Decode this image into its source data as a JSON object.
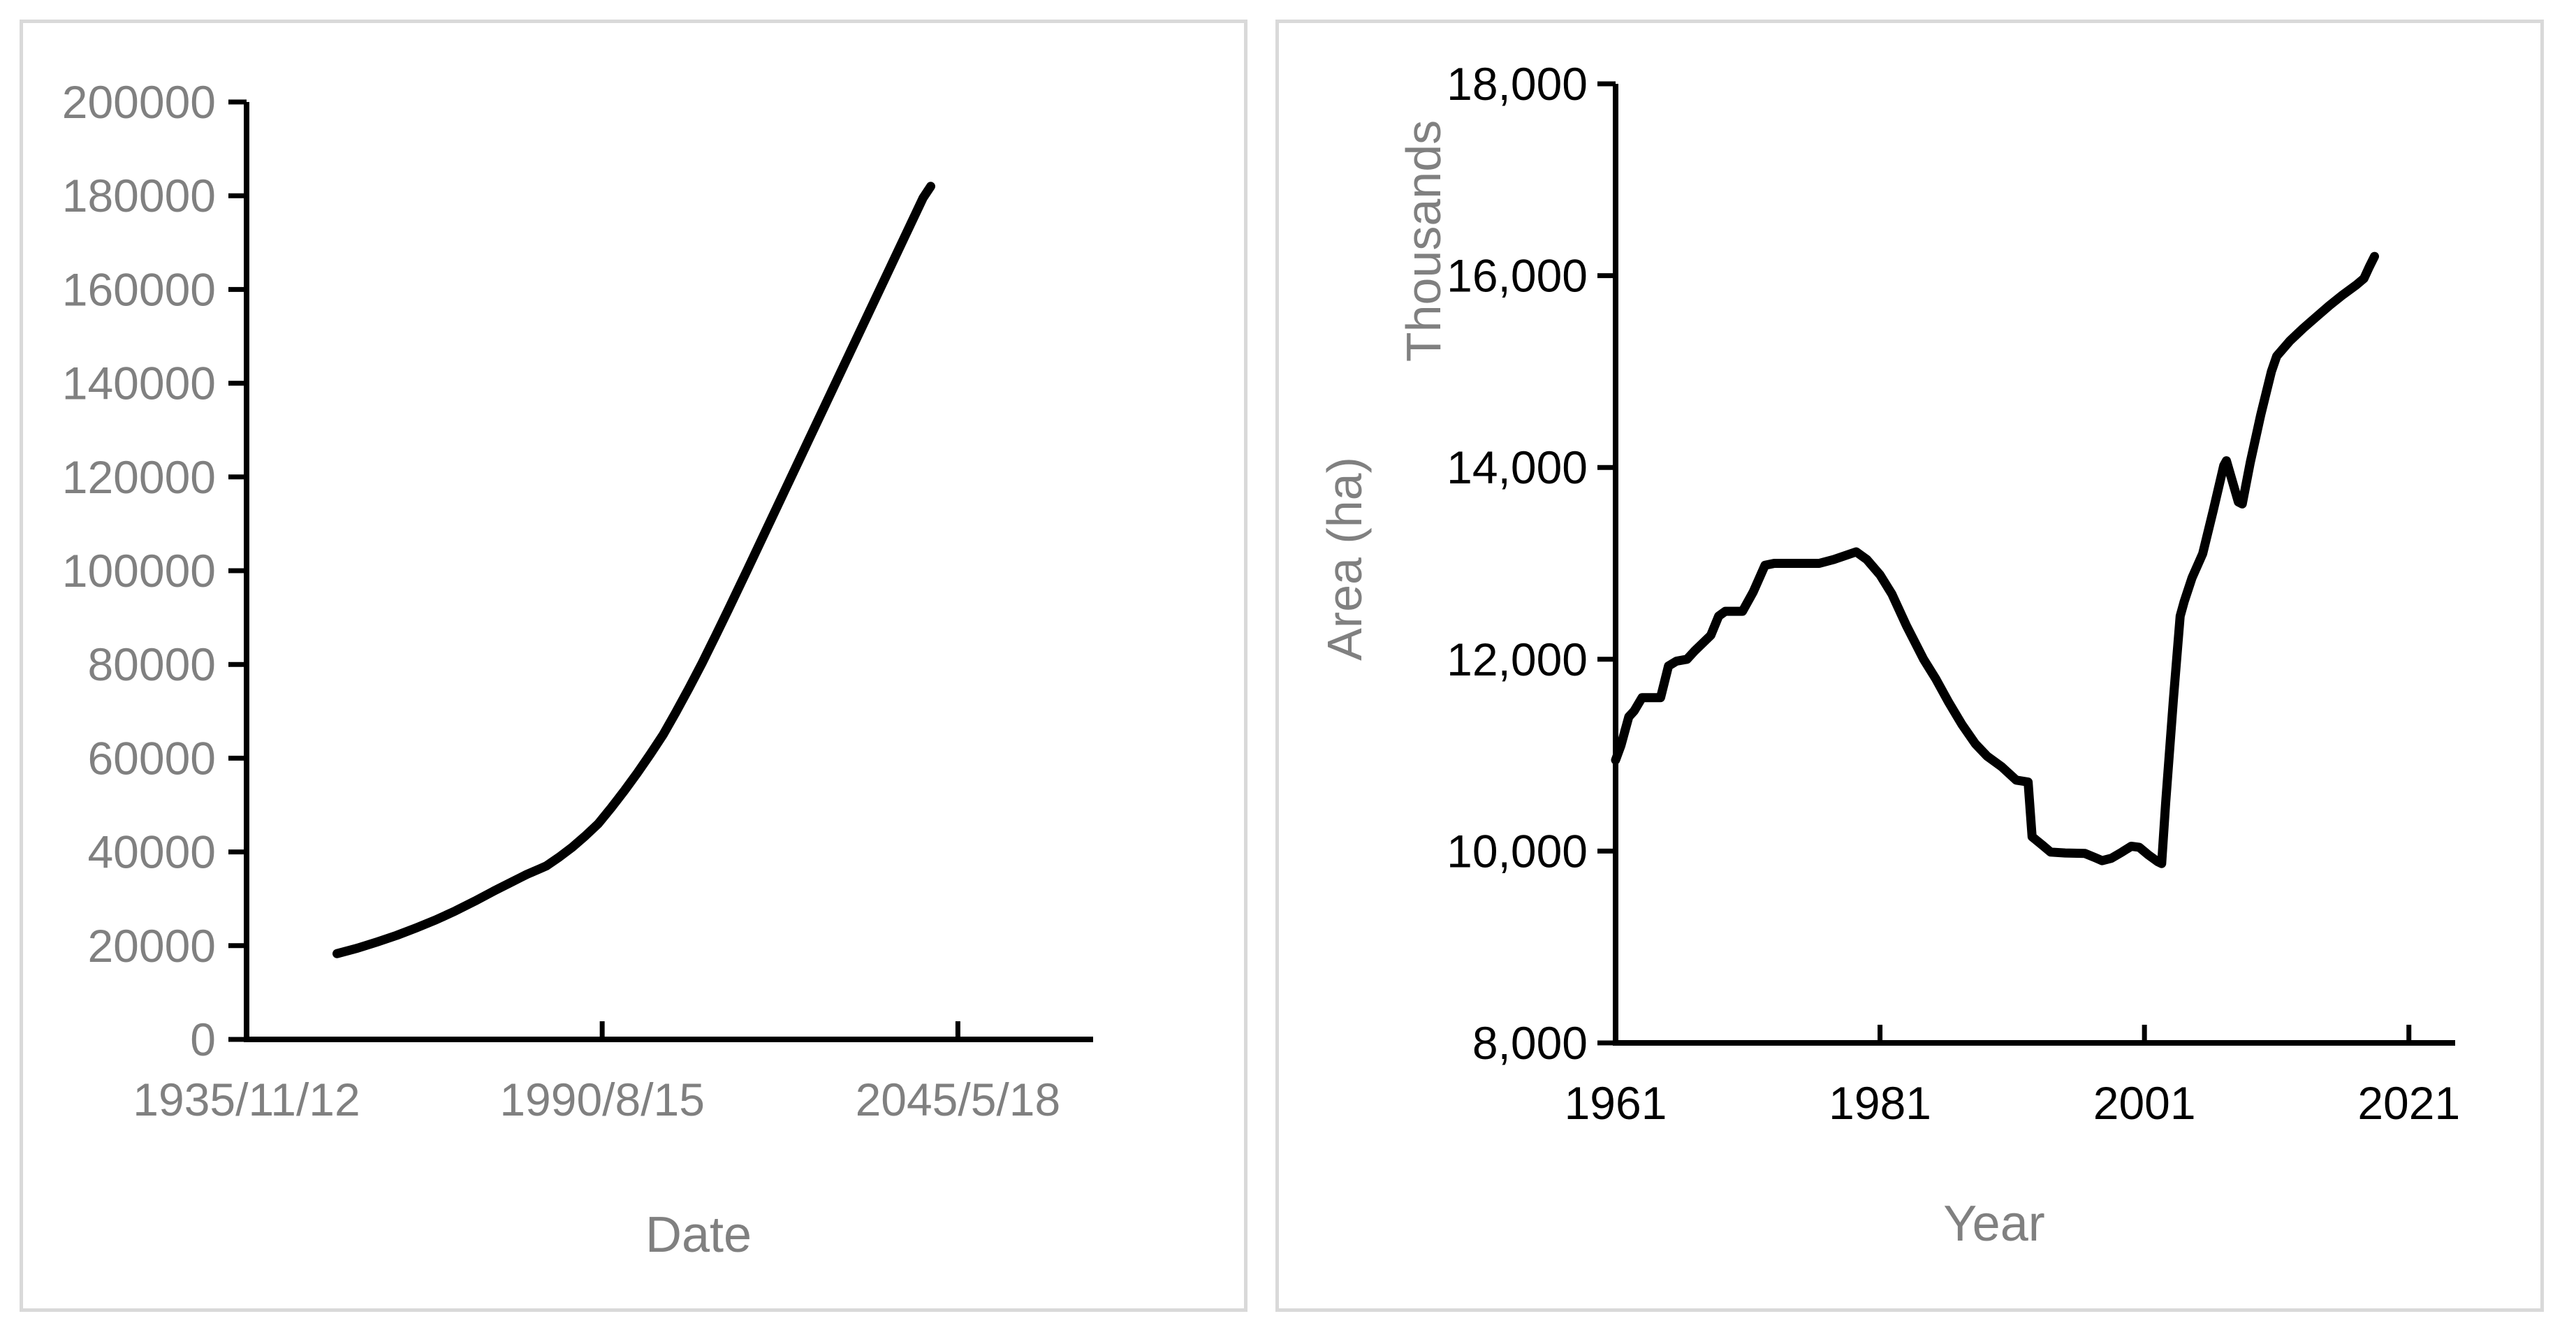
{
  "page": {
    "background": "#ffffff",
    "panel_border_color": "#d9d9d9"
  },
  "chart_data": [
    {
      "type": "line",
      "panel": "left",
      "title": "",
      "xlabel": "Date",
      "ylabel": "",
      "legend": null,
      "grid": false,
      "axis_color": "#000000",
      "line_color": "#000000",
      "tick_label_color": "#808080",
      "axis_title_color": "#808080",
      "ylim": [
        0,
        200000
      ],
      "y_ticks": [
        0,
        20000,
        40000,
        60000,
        80000,
        100000,
        120000,
        140000,
        160000,
        180000,
        200000
      ],
      "y_tick_labels": [
        "0",
        "20000",
        "40000",
        "60000",
        "80000",
        "100000",
        "120000",
        "140000",
        "160000",
        "180000",
        "200000"
      ],
      "xlim": [
        1935.87,
        2066.2
      ],
      "x_ticks": [
        1935.87,
        1990.62,
        2045.38
      ],
      "x_tick_labels": [
        "1935/11/12",
        "1990/8/15",
        "2045/5/18"
      ],
      "series": [
        {
          "name": "value-over-date",
          "points": [
            [
              1949.8,
              18300
            ],
            [
              1953,
              19500
            ],
            [
              1956,
              20800
            ],
            [
              1959,
              22200
            ],
            [
              1962,
              23800
            ],
            [
              1965,
              25500
            ],
            [
              1968,
              27400
            ],
            [
              1971,
              29500
            ],
            [
              1974,
              31700
            ],
            [
              1977,
              33800
            ],
            [
              1978,
              34500
            ],
            [
              1979,
              35200
            ],
            [
              1980,
              35800
            ],
            [
              1981,
              36400
            ],
            [
              1982,
              37000
            ],
            [
              1984,
              38900
            ],
            [
              1986,
              41000
            ],
            [
              1988,
              43400
            ],
            [
              1990,
              46000
            ],
            [
              1992,
              49400
            ],
            [
              1994,
              53000
            ],
            [
              1996,
              56800
            ],
            [
              1998,
              60800
            ],
            [
              2000,
              65000
            ],
            [
              2002,
              69900
            ],
            [
              2004,
              75000
            ],
            [
              2006,
              80300
            ],
            [
              2008,
              85900
            ],
            [
              2010,
              91600
            ],
            [
              2012,
              97400
            ],
            [
              2013,
              100300
            ],
            [
              2016,
              109100
            ],
            [
              2019,
              117900
            ],
            [
              2022,
              126700
            ],
            [
              2025,
              135500
            ],
            [
              2028,
              144300
            ],
            [
              2031,
              153100
            ],
            [
              2034,
              161900
            ],
            [
              2037,
              170700
            ],
            [
              2040,
              179500
            ],
            [
              2041.2,
              182000
            ]
          ]
        }
      ]
    },
    {
      "type": "line",
      "panel": "right",
      "title": "",
      "xlabel": "Year",
      "ylabel": "Area (ha)",
      "y_display_units": "Thousands",
      "legend": null,
      "grid": false,
      "axis_color": "#000000",
      "line_color": "#000000",
      "tick_label_color": "#000000",
      "axis_title_color": "#808080",
      "ylim": [
        8000,
        18000
      ],
      "y_ticks": [
        8000,
        10000,
        12000,
        14000,
        16000,
        18000
      ],
      "y_tick_labels": [
        "8,000",
        "10,000",
        "12,000",
        "14,000",
        "16,000",
        "18,000"
      ],
      "xlim": [
        1961,
        2024.5
      ],
      "x_ticks": [
        1961,
        1981,
        2001,
        2021
      ],
      "x_tick_labels": [
        "1961",
        "1981",
        "2001",
        "2021"
      ],
      "series": [
        {
          "name": "area-ha-thousands",
          "points": [
            [
              1961,
              10950
            ],
            [
              1961.4,
              11100
            ],
            [
              1962,
              11400
            ],
            [
              1962.4,
              11460
            ],
            [
              1963,
              11600
            ],
            [
              1964.4,
              11600
            ],
            [
              1965,
              11930
            ],
            [
              1965.6,
              11980
            ],
            [
              1966.4,
              12000
            ],
            [
              1967,
              12090
            ],
            [
              1968.2,
              12250
            ],
            [
              1968.8,
              12450
            ],
            [
              1969.3,
              12500
            ],
            [
              1970.6,
              12500
            ],
            [
              1971.4,
              12700
            ],
            [
              1972.3,
              12980
            ],
            [
              1973,
              13000
            ],
            [
              1976.4,
              13000
            ],
            [
              1977.5,
              13040
            ],
            [
              1979.2,
              13120
            ],
            [
              1980,
              13040
            ],
            [
              1981,
              12880
            ],
            [
              1981.9,
              12680
            ],
            [
              1983,
              12350
            ],
            [
              1984.3,
              12000
            ],
            [
              1985.2,
              11800
            ],
            [
              1986.2,
              11550
            ],
            [
              1987.2,
              11320
            ],
            [
              1988.2,
              11120
            ],
            [
              1989.1,
              10990
            ],
            [
              1990.2,
              10880
            ],
            [
              1991.3,
              10740
            ],
            [
              1992.2,
              10720
            ],
            [
              1992.5,
              10150
            ],
            [
              1993.3,
              10060
            ],
            [
              1993.9,
              9990
            ],
            [
              1995,
              9980
            ],
            [
              1996.5,
              9975
            ],
            [
              1997.3,
              9930
            ],
            [
              1997.8,
              9900
            ],
            [
              1998.5,
              9925
            ],
            [
              1999.3,
              9990
            ],
            [
              2000,
              10050
            ],
            [
              2000.6,
              10040
            ],
            [
              2001.3,
              9960
            ],
            [
              2002,
              9890
            ],
            [
              2002.3,
              9870
            ],
            [
              2002.6,
              10500
            ],
            [
              2003.2,
              11600
            ],
            [
              2003.7,
              12450
            ],
            [
              2004,
              12600
            ],
            [
              2004.6,
              12850
            ],
            [
              2005.4,
              13100
            ],
            [
              2006.2,
              13550
            ],
            [
              2007,
              14020
            ],
            [
              2007.2,
              14070
            ],
            [
              2008.1,
              13640
            ],
            [
              2008.4,
              13620
            ],
            [
              2009,
              14050
            ],
            [
              2009.8,
              14550
            ],
            [
              2010.6,
              15000
            ],
            [
              2011,
              15160
            ],
            [
              2012,
              15320
            ],
            [
              2013,
              15450
            ],
            [
              2014,
              15570
            ],
            [
              2015,
              15690
            ],
            [
              2016,
              15800
            ],
            [
              2017,
              15900
            ],
            [
              2017.6,
              15970
            ],
            [
              2018,
              16090
            ],
            [
              2018.4,
              16200
            ]
          ]
        }
      ]
    }
  ]
}
